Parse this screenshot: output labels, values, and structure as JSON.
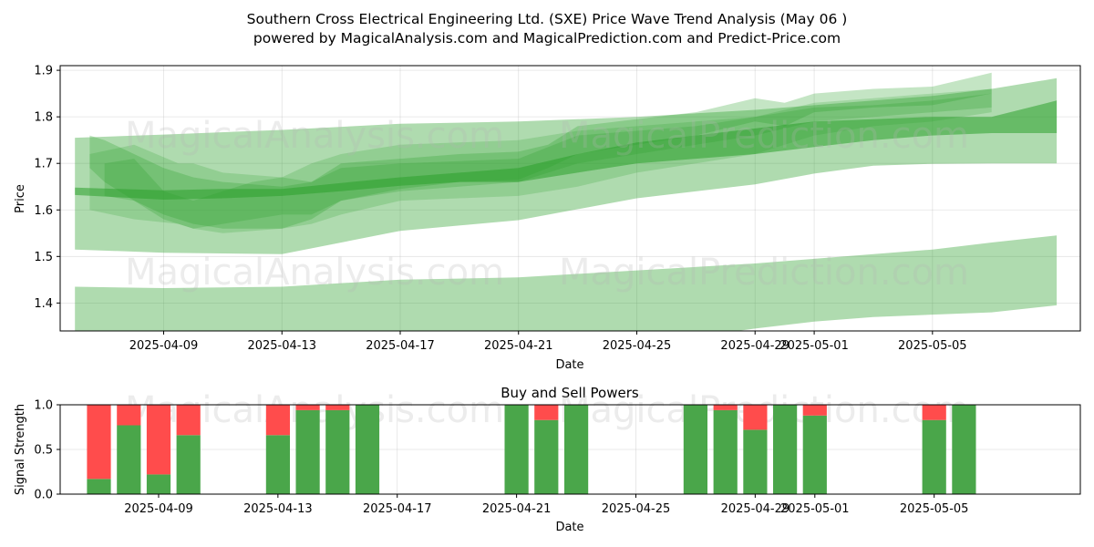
{
  "chart_data": [
    {
      "type": "area",
      "title_line1": "Southern Cross Electrical Engineering Ltd. (SXE) Price Wave Trend Analysis (May 06 )",
      "title_line2": "powered by MagicalAnalysis.com and MagicalPrediction.com and Predict-Price.com",
      "xlabel": "Date",
      "ylabel": "Price",
      "ylim": [
        1.34,
        1.91
      ],
      "xlim_days": [
        -3.5,
        31.0
      ],
      "date_origin": "2025-04-09",
      "x_ticks": [
        {
          "label": "2025-04-09",
          "day": 0
        },
        {
          "label": "2025-04-13",
          "day": 4
        },
        {
          "label": "2025-04-17",
          "day": 8
        },
        {
          "label": "2025-04-21",
          "day": 12
        },
        {
          "label": "2025-04-25",
          "day": 16
        },
        {
          "label": "2025-04-29",
          "day": 20
        },
        {
          "label": "2025-05-01",
          "day": 22
        },
        {
          "label": "2025-05-05",
          "day": 26
        }
      ],
      "y_ticks": [
        {
          "label": "1.4",
          "value": 1.4
        },
        {
          "label": "1.5",
          "value": 1.5
        },
        {
          "label": "1.6",
          "value": 1.6
        },
        {
          "label": "1.7",
          "value": 1.7
        },
        {
          "label": "1.8",
          "value": 1.8
        },
        {
          "label": "1.9",
          "value": 1.9
        }
      ],
      "grid": true,
      "color": "#2ca02c",
      "series": [
        {
          "name": "wide-upper-band",
          "x": [
            -3,
            0,
            4,
            8,
            12,
            16,
            20,
            22,
            24,
            26,
            28,
            30.2
          ],
          "upper": [
            1.755,
            1.762,
            1.772,
            1.785,
            1.79,
            1.8,
            1.815,
            1.825,
            1.835,
            1.845,
            1.86,
            1.883
          ],
          "lower": [
            1.515,
            1.508,
            1.505,
            1.555,
            1.578,
            1.625,
            1.655,
            1.678,
            1.695,
            1.699,
            1.7,
            1.7
          ]
        },
        {
          "name": "wide-lower-band",
          "x": [
            -3,
            0,
            4,
            8,
            12,
            16,
            20,
            22,
            24,
            26,
            28,
            30.2
          ],
          "upper": [
            1.435,
            1.432,
            1.435,
            1.45,
            1.455,
            1.47,
            1.485,
            1.495,
            1.505,
            1.515,
            1.53,
            1.545
          ],
          "lower": [
            1.3,
            1.3,
            1.3,
            1.3,
            1.3,
            1.31,
            1.345,
            1.36,
            1.37,
            1.375,
            1.38,
            1.395
          ]
        },
        {
          "name": "wave-1",
          "x": [
            -2.5,
            -1,
            0.5,
            1,
            2,
            4,
            5,
            6,
            8,
            12,
            14,
            16,
            18,
            20,
            21,
            22,
            24,
            26,
            28
          ],
          "upper": [
            1.72,
            1.74,
            1.7,
            1.7,
            1.68,
            1.67,
            1.7,
            1.72,
            1.74,
            1.75,
            1.77,
            1.78,
            1.79,
            1.8,
            1.815,
            1.83,
            1.84,
            1.85,
            1.86
          ],
          "lower": [
            1.6,
            1.58,
            1.57,
            1.56,
            1.55,
            1.56,
            1.57,
            1.59,
            1.62,
            1.63,
            1.65,
            1.68,
            1.7,
            1.72,
            1.74,
            1.76,
            1.78,
            1.79,
            1.81
          ]
        },
        {
          "name": "wave-2",
          "x": [
            -2.5,
            -2,
            -1,
            0,
            1,
            2,
            4,
            5,
            6,
            8,
            10,
            12,
            13,
            14,
            16,
            18,
            20,
            21,
            22,
            24,
            26,
            28
          ],
          "upper": [
            1.76,
            1.75,
            1.72,
            1.69,
            1.67,
            1.66,
            1.65,
            1.66,
            1.7,
            1.71,
            1.72,
            1.725,
            1.74,
            1.78,
            1.795,
            1.81,
            1.84,
            1.83,
            1.85,
            1.86,
            1.865,
            1.895
          ],
          "lower": [
            1.69,
            1.66,
            1.62,
            1.59,
            1.57,
            1.56,
            1.56,
            1.58,
            1.62,
            1.645,
            1.66,
            1.665,
            1.69,
            1.72,
            1.74,
            1.76,
            1.79,
            1.78,
            1.81,
            1.82,
            1.825,
            1.85
          ]
        },
        {
          "name": "wave-3",
          "x": [
            -2,
            -1,
            0,
            1,
            2,
            3,
            4,
            5,
            6,
            8,
            10,
            12,
            14,
            16,
            18,
            20,
            22,
            24,
            26,
            28
          ],
          "upper": [
            1.7,
            1.71,
            1.64,
            1.62,
            1.64,
            1.66,
            1.67,
            1.66,
            1.69,
            1.7,
            1.705,
            1.71,
            1.76,
            1.77,
            1.78,
            1.8,
            1.82,
            1.825,
            1.835,
            1.85
          ],
          "lower": [
            1.63,
            1.62,
            1.58,
            1.56,
            1.57,
            1.58,
            1.59,
            1.59,
            1.62,
            1.64,
            1.65,
            1.66,
            1.7,
            1.72,
            1.74,
            1.76,
            1.79,
            1.8,
            1.81,
            1.82
          ]
        },
        {
          "name": "central-trend",
          "x": [
            -3,
            0,
            2,
            4,
            6,
            8,
            10,
            12,
            14,
            16,
            18,
            20,
            22,
            24,
            26,
            28,
            30.2
          ],
          "upper": [
            1.648,
            1.642,
            1.645,
            1.645,
            1.658,
            1.67,
            1.68,
            1.69,
            1.72,
            1.745,
            1.76,
            1.775,
            1.79,
            1.795,
            1.8,
            1.8,
            1.835
          ],
          "lower": [
            1.632,
            1.622,
            1.625,
            1.63,
            1.64,
            1.652,
            1.66,
            1.66,
            1.68,
            1.7,
            1.71,
            1.72,
            1.735,
            1.75,
            1.76,
            1.765,
            1.765
          ]
        }
      ],
      "watermarks": [
        "MagicalAnalysis.com",
        "MagicalPrediction.com"
      ]
    },
    {
      "type": "bar",
      "title": "Buy and Sell Powers",
      "xlabel": "Date",
      "ylabel": "Signal Strength",
      "ylim": [
        0,
        1.0
      ],
      "xlim_days": [
        -3.3,
        30.9
      ],
      "date_origin": "2025-04-09",
      "x_ticks": [
        {
          "label": "2025-04-09",
          "day": 0
        },
        {
          "label": "2025-04-13",
          "day": 4
        },
        {
          "label": "2025-04-17",
          "day": 8
        },
        {
          "label": "2025-04-21",
          "day": 12
        },
        {
          "label": "2025-04-25",
          "day": 16
        },
        {
          "label": "2025-04-29",
          "day": 20
        },
        {
          "label": "2025-05-01",
          "day": 22
        },
        {
          "label": "2025-05-05",
          "day": 26
        }
      ],
      "y_ticks": [
        {
          "label": "0.0",
          "value": 0.0
        },
        {
          "label": "0.5",
          "value": 0.5
        },
        {
          "label": "1.0",
          "value": 1.0
        }
      ],
      "buy_color": "#4aa64a",
      "sell_color": "#ff4c4c",
      "series": [
        {
          "name": "Buy",
          "days": [
            -2,
            -1,
            0,
            1,
            4,
            5,
            6,
            7,
            12,
            13,
            14,
            18,
            19,
            20,
            21,
            22,
            26,
            27
          ],
          "values": [
            0.17,
            0.77,
            0.22,
            0.66,
            0.66,
            0.94,
            0.94,
            1.0,
            1.0,
            0.83,
            1.0,
            1.0,
            0.94,
            0.72,
            1.0,
            0.88,
            0.83,
            1.0
          ]
        },
        {
          "name": "Sell",
          "days": [
            -2,
            -1,
            0,
            1,
            4,
            5,
            6,
            7,
            12,
            13,
            14,
            18,
            19,
            20,
            21,
            22,
            26,
            27
          ],
          "values": [
            0.83,
            0.23,
            0.78,
            0.34,
            0.34,
            0.06,
            0.06,
            0.0,
            0.0,
            0.17,
            0.0,
            0.0,
            0.06,
            0.28,
            0.0,
            0.12,
            0.17,
            0.0
          ]
        }
      ],
      "watermarks": [
        "MagicalAnalysis.com",
        "MagicalPrediction.com"
      ]
    }
  ]
}
